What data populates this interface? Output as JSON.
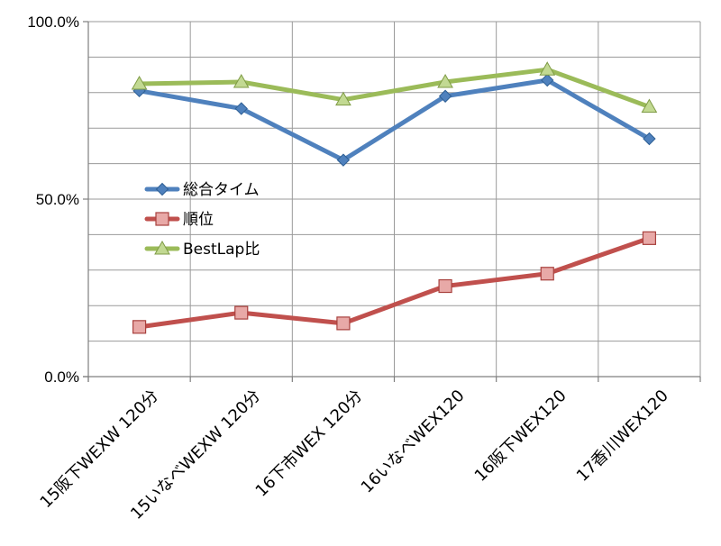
{
  "chart_data": {
    "type": "line",
    "categories": [
      "15阪下WEXW 120分",
      "15いなべWEXW 120分",
      "16下市WEX 120分",
      "16いなべWEX120",
      "16阪下WEX120",
      "17香川WEX120"
    ],
    "series": [
      {
        "name": "総合タイム",
        "color": "#4f81bd",
        "marker": "diamond",
        "values": [
          80.5,
          75.5,
          61.0,
          79.0,
          83.5,
          67.0
        ]
      },
      {
        "name": "順位",
        "color": "#c0504d",
        "marker": "square",
        "values": [
          14.0,
          18.0,
          15.0,
          25.5,
          29.0,
          39.0
        ]
      },
      {
        "name": "BestLap比",
        "color": "#9bbb59",
        "marker": "triangle",
        "values": [
          82.5,
          83.0,
          78.0,
          83.0,
          86.5,
          76.0
        ]
      }
    ],
    "y_ticks": [
      "0.0%",
      "50.0%",
      "100.0%"
    ],
    "ylim": [
      0,
      100
    ],
    "grid": true,
    "legend_position": "center-left"
  }
}
